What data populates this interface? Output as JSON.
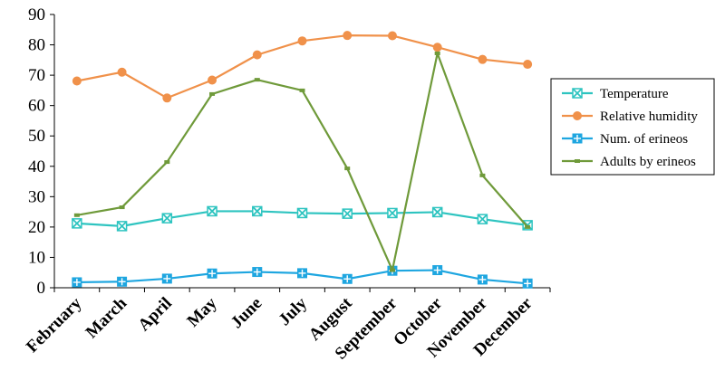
{
  "chart_data": {
    "type": "line",
    "categories": [
      "February",
      "March",
      "April",
      "May",
      "June",
      "July",
      "August",
      "September",
      "October",
      "November",
      "December"
    ],
    "ylim": [
      0,
      90
    ],
    "yticks": [
      0,
      10,
      20,
      30,
      40,
      50,
      60,
      70,
      80,
      90
    ],
    "grid": false,
    "legend_position": "right",
    "series": [
      {
        "name": "Temperature",
        "color": "#2ec4c0",
        "marker": "x-square",
        "values": [
          21.2,
          20.3,
          22.9,
          25.2,
          25.2,
          24.6,
          24.4,
          24.6,
          24.9,
          22.6,
          20.6
        ]
      },
      {
        "name": "Relative humidity",
        "color": "#f0914a",
        "marker": "circle",
        "values": [
          68.1,
          71.0,
          62.5,
          68.4,
          76.7,
          81.3,
          83.1,
          83.0,
          79.2,
          75.2,
          73.6
        ]
      },
      {
        "name": "Num. of erineos",
        "color": "#1ea6e0",
        "marker": "plus-square",
        "values": [
          1.8,
          2.0,
          3.0,
          4.7,
          5.2,
          4.8,
          2.9,
          5.6,
          5.8,
          2.7,
          1.4
        ]
      },
      {
        "name": "Adults by erineos",
        "color": "#6f9a3a",
        "marker": "dash",
        "values": [
          23.9,
          26.5,
          41.4,
          63.8,
          68.5,
          65.0,
          39.3,
          5.8,
          77.2,
          37.0,
          20.0
        ]
      }
    ]
  }
}
